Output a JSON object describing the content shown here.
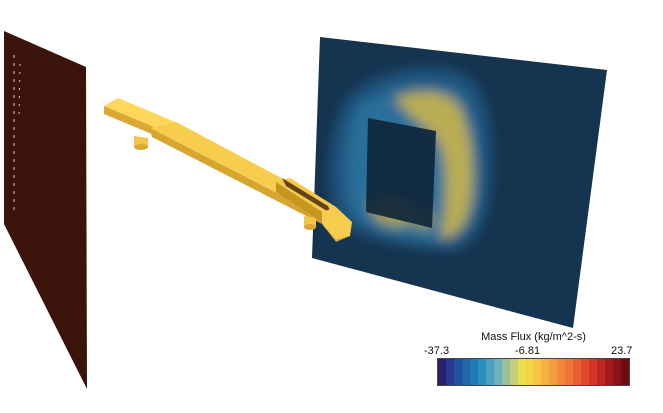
{
  "legend": {
    "title": "Mass Flux (kg/m^2-s)",
    "min_label": "-37.3",
    "mid_label": "-6.81",
    "max_label": "23.7",
    "min_value": -37.3,
    "mid_value": -6.81,
    "max_value": 23.7,
    "colormap": [
      "#2a1f6b",
      "#253a8c",
      "#22519f",
      "#1f66ad",
      "#1e7ab7",
      "#2e8ebf",
      "#4aa1c2",
      "#6eb2b8",
      "#97c09b",
      "#c5cf75",
      "#ecdf52",
      "#f5d548",
      "#f7c445",
      "#f5b042",
      "#f49c3e",
      "#f2873a",
      "#ef7236",
      "#ea5d31",
      "#e1492c",
      "#d23627",
      "#c02522",
      "#a8191d",
      "#8a1118",
      "#6e0c13"
    ]
  },
  "scene": {
    "inlet_plane_color": "#3a140a",
    "part_color": "#f5c94a",
    "part_edge_color": "#c8951f",
    "flux_plane_background": "#15344f"
  }
}
